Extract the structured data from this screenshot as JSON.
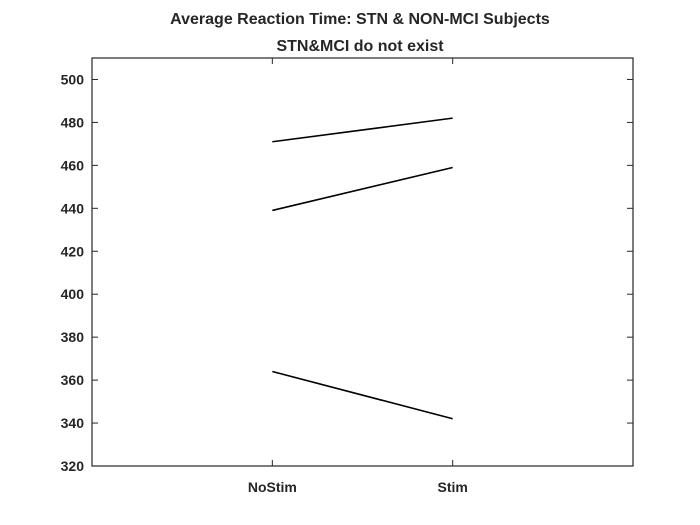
{
  "chart_data": {
    "type": "line",
    "title": "Average Reaction Time: STN & NON-MCI Subjects",
    "subtitle": "STN&MCI do not exist",
    "xlabel": "",
    "ylabel": "",
    "categories": [
      "NoStim",
      "Stim"
    ],
    "ylim": [
      320,
      510
    ],
    "yticks": [
      320,
      340,
      360,
      380,
      400,
      420,
      440,
      460,
      480,
      500
    ],
    "xlim": [
      0,
      3
    ],
    "grid": false,
    "legend": "none",
    "series": [
      {
        "values": [
          471,
          482
        ]
      },
      {
        "values": [
          439,
          459
        ]
      },
      {
        "values": [
          364,
          342
        ]
      }
    ],
    "line_color": "#000000",
    "axis_color": "#262626"
  }
}
